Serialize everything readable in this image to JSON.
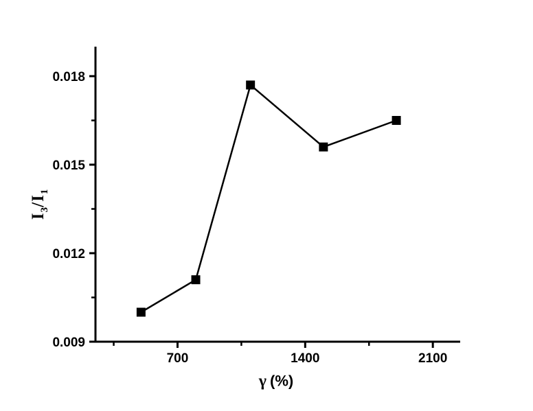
{
  "chart_data": {
    "type": "line",
    "x": [
      500,
      800,
      1100,
      1500,
      1900
    ],
    "y": [
      0.01,
      0.0111,
      0.0177,
      0.0156,
      0.0165
    ],
    "xlabel": {
      "gamma": "γ",
      "units": "(%)"
    },
    "ylabel": {
      "base1": "I",
      "sub1": "3",
      "slash": "/",
      "base2": "I",
      "sub2": "1"
    },
    "xlim": [
      250,
      2250
    ],
    "ylim": [
      0.009,
      0.019
    ],
    "x_major_ticks": [
      700,
      1400,
      2100
    ],
    "x_major_tick_labels": [
      "700",
      "1400",
      "2100"
    ],
    "x_minor_ticks": [
      350,
      1050,
      1750
    ],
    "y_major_ticks": [
      0.009,
      0.012,
      0.015,
      0.018
    ],
    "y_major_tick_labels": [
      "0.009",
      "0.012",
      "0.015",
      "0.018"
    ],
    "y_minor_ticks": [
      0.0105,
      0.0135,
      0.0165
    ],
    "marker": "square",
    "line_color": "#000000",
    "marker_color": "#000000",
    "axis_color": "#000000",
    "background": "#ffffff",
    "grid": false
  }
}
